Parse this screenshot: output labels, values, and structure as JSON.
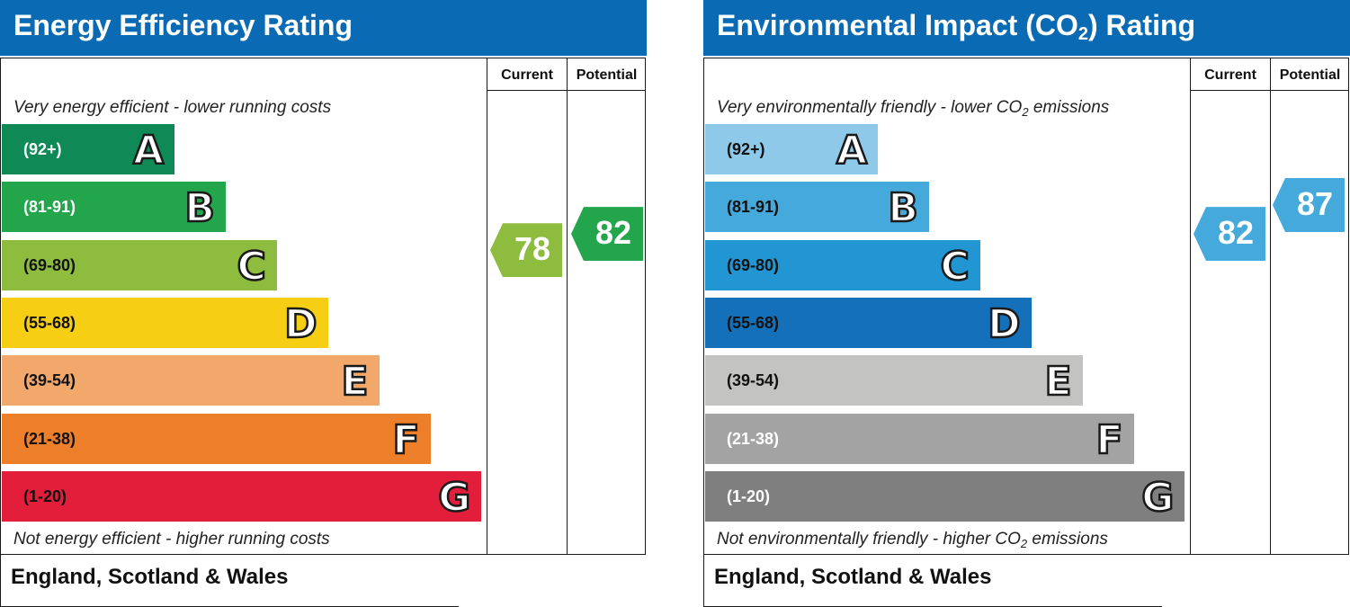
{
  "chart_data": [
    {
      "type": "bar",
      "title": "Energy Efficiency Rating",
      "columns": [
        "Current",
        "Potential"
      ],
      "top_caption": "Very energy efficient - lower running costs",
      "bottom_caption": "Not energy efficient - higher running costs",
      "footer": "England, Scotland & Wales",
      "bands": [
        {
          "letter": "A",
          "range": "(92+)",
          "min": 92,
          "max": 100,
          "color": "#0f8a56",
          "text_color": "#ffffff"
        },
        {
          "letter": "B",
          "range": "(81-91)",
          "min": 81,
          "max": 91,
          "color": "#23a54b",
          "text_color": "#ffffff"
        },
        {
          "letter": "C",
          "range": "(69-80)",
          "min": 69,
          "max": 80,
          "color": "#8dbc3e",
          "text_color": "#111111"
        },
        {
          "letter": "D",
          "range": "(55-68)",
          "min": 55,
          "max": 68,
          "color": "#f6cf14",
          "text_color": "#111111"
        },
        {
          "letter": "E",
          "range": "(39-54)",
          "min": 39,
          "max": 54,
          "color": "#f2a86a",
          "text_color": "#111111"
        },
        {
          "letter": "F",
          "range": "(21-38)",
          "min": 21,
          "max": 38,
          "color": "#ed7f2a",
          "text_color": "#111111"
        },
        {
          "letter": "G",
          "range": "(1-20)",
          "min": 1,
          "max": 20,
          "color": "#e31e3a",
          "text_color": "#111111"
        }
      ],
      "current": {
        "value": 78,
        "band": "C",
        "color": "#8dbc3e"
      },
      "potential": {
        "value": 82,
        "band": "B",
        "color": "#23a54b"
      }
    },
    {
      "type": "bar",
      "title_prefix": "Environmental Impact (CO",
      "title_sub": "2",
      "title_suffix": ") Rating",
      "columns": [
        "Current",
        "Potential"
      ],
      "top_caption_prefix": "Very environmentally friendly - lower CO",
      "top_caption_sub": "2",
      "top_caption_suffix": " emissions",
      "bottom_caption_prefix": "Not environmentally friendly - higher CO",
      "bottom_caption_sub": "2",
      "bottom_caption_suffix": " emissions",
      "footer": "England, Scotland & Wales",
      "bands": [
        {
          "letter": "A",
          "range": "(92+)",
          "min": 92,
          "max": 100,
          "color": "#8ec9ea",
          "text_color": "#111111"
        },
        {
          "letter": "B",
          "range": "(81-91)",
          "min": 81,
          "max": 91,
          "color": "#45a9dc",
          "text_color": "#111111"
        },
        {
          "letter": "C",
          "range": "(69-80)",
          "min": 69,
          "max": 80,
          "color": "#2196d2",
          "text_color": "#111111"
        },
        {
          "letter": "D",
          "range": "(55-68)",
          "min": 55,
          "max": 68,
          "color": "#1470b8",
          "text_color": "#111111"
        },
        {
          "letter": "E",
          "range": "(39-54)",
          "min": 39,
          "max": 54,
          "color": "#c3c3c1",
          "text_color": "#111111"
        },
        {
          "letter": "F",
          "range": "(21-38)",
          "min": 21,
          "max": 38,
          "color": "#a3a3a3",
          "text_color": "#ffffff"
        },
        {
          "letter": "G",
          "range": "(1-20)",
          "min": 1,
          "max": 20,
          "color": "#7f7f7f",
          "text_color": "#ffffff"
        }
      ],
      "current": {
        "value": 82,
        "band": "B",
        "color": "#45a9dc"
      },
      "potential": {
        "value": 87,
        "band": "B",
        "color": "#45a9dc"
      }
    }
  ]
}
